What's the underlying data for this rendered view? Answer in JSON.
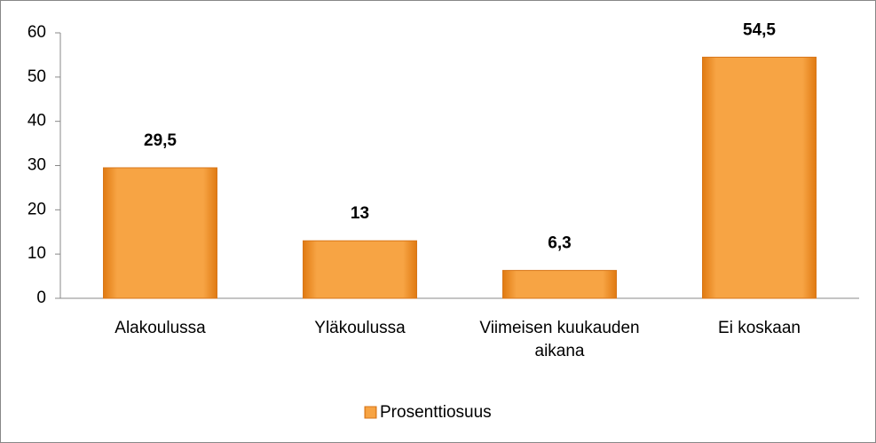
{
  "chart_data": {
    "type": "bar",
    "categories": [
      "Alakoulussa",
      "Yläkoulussa",
      "Viimeisen kuukauden aikana",
      "Ei koskaan"
    ],
    "series": [
      {
        "name": "Prosenttiosuus",
        "color": "#f59a2e",
        "values": [
          29.5,
          13,
          6.3,
          54.5
        ],
        "value_labels": [
          "29,5",
          "13",
          "6,3",
          "54,5"
        ]
      }
    ],
    "ylim": [
      0,
      60
    ],
    "yticks": [
      0,
      10,
      20,
      30,
      40,
      50,
      60
    ],
    "grid": false,
    "legend": "bottom"
  }
}
